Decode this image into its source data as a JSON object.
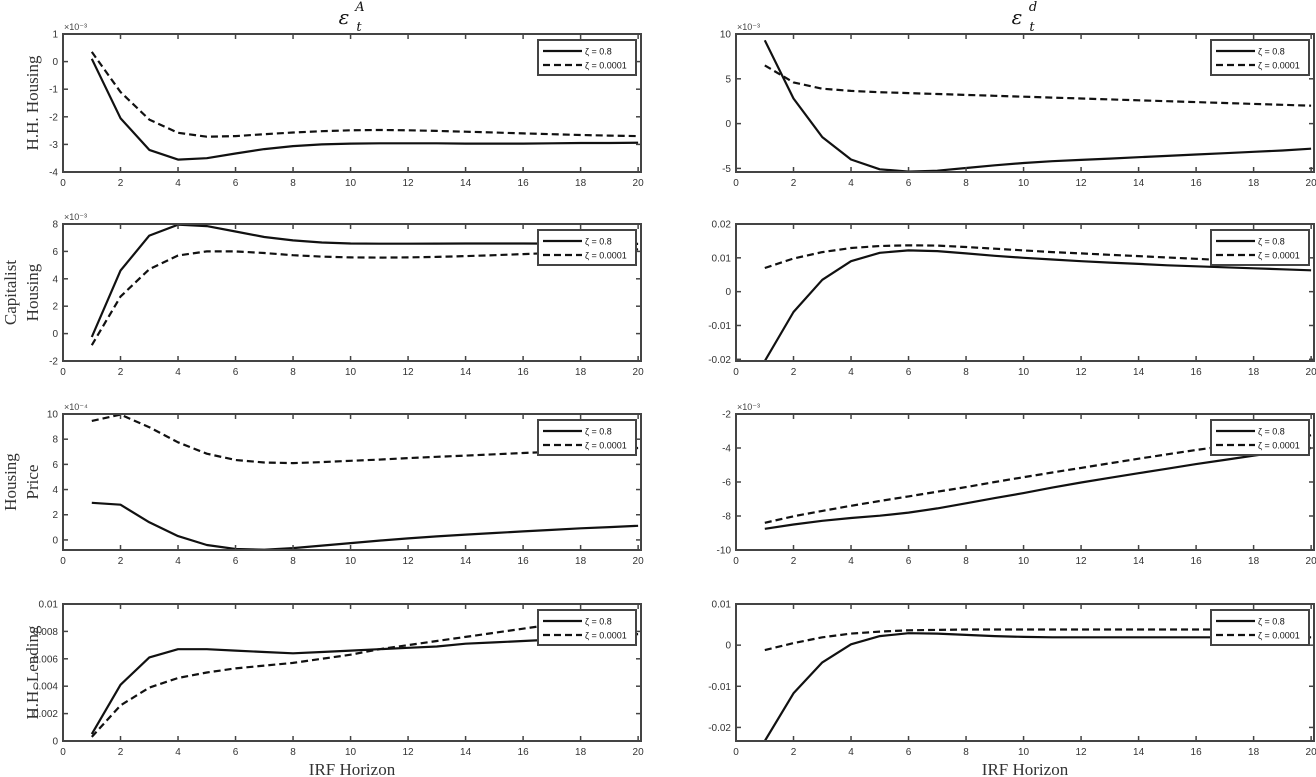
{
  "figure": {
    "column_titles": [
      {
        "base": "ε",
        "sub": "t",
        "sup": "A"
      },
      {
        "base": "ε",
        "sub": "t",
        "sup": "d"
      }
    ],
    "row_labels": [
      [
        "H.H. Housing"
      ],
      [
        "Capitalist",
        "Housing"
      ],
      [
        "Housing",
        "Price"
      ],
      [
        "H.H. Lending"
      ]
    ],
    "xlabel": "IRF Horizon",
    "legend": [
      {
        "label": "ζ = 0.8",
        "style": "solid"
      },
      {
        "label": "ζ = 0.0001",
        "style": "dashed"
      }
    ],
    "colors": {
      "line": "#111111",
      "axis": "#444444",
      "background": "#ffffff"
    }
  },
  "chart_data": [
    {
      "type": "line",
      "title": "ε_t^A",
      "ylabel": "H.H. Housing",
      "xlabel": "",
      "row": 0,
      "col": 0,
      "exponent": "×10⁻³",
      "x": [
        1,
        2,
        3,
        4,
        5,
        6,
        7,
        8,
        9,
        10,
        11,
        12,
        13,
        14,
        15,
        16,
        17,
        18,
        19,
        20
      ],
      "xlim": [
        0,
        20
      ],
      "xticks": [
        0,
        2,
        4,
        6,
        8,
        10,
        12,
        14,
        16,
        18,
        20
      ],
      "ylim": [
        -4,
        1
      ],
      "yticks": [
        -4,
        -3,
        -2,
        -1,
        0,
        1
      ],
      "yticklabels": [
        "-4",
        "-3",
        "-2",
        "-1",
        "0",
        "1"
      ],
      "series": [
        {
          "name": "ζ = 0.8",
          "style": "solid",
          "values": [
            0.1,
            -2.05,
            -3.2,
            -3.55,
            -3.5,
            -3.33,
            -3.17,
            -3.06,
            -3.0,
            -2.97,
            -2.96,
            -2.96,
            -2.96,
            -2.97,
            -2.97,
            -2.97,
            -2.96,
            -2.95,
            -2.95,
            -2.94
          ]
        },
        {
          "name": "ζ = 0.0001",
          "style": "dashed",
          "values": [
            0.35,
            -1.1,
            -2.1,
            -2.58,
            -2.72,
            -2.7,
            -2.63,
            -2.57,
            -2.52,
            -2.49,
            -2.48,
            -2.49,
            -2.51,
            -2.54,
            -2.57,
            -2.6,
            -2.63,
            -2.66,
            -2.68,
            -2.7
          ]
        }
      ],
      "legend_position": "upper right",
      "grid": false
    },
    {
      "type": "line",
      "title": "ε_t^d",
      "ylabel": "",
      "xlabel": "",
      "row": 0,
      "col": 1,
      "exponent": "×10⁻³",
      "x": [
        1,
        2,
        3,
        4,
        5,
        6,
        7,
        8,
        9,
        10,
        11,
        12,
        13,
        14,
        15,
        16,
        17,
        18,
        19,
        20
      ],
      "xlim": [
        0,
        20
      ],
      "xticks": [
        0,
        2,
        4,
        6,
        8,
        10,
        12,
        14,
        16,
        18,
        20
      ],
      "ylim": [
        -5.4,
        10
      ],
      "yticks": [
        -5,
        0,
        5,
        10
      ],
      "yticklabels": [
        "-5",
        "0",
        "5",
        "10"
      ],
      "series": [
        {
          "name": "ζ = 0.8",
          "style": "solid",
          "values": [
            9.3,
            2.8,
            -1.5,
            -4.0,
            -5.1,
            -5.35,
            -5.25,
            -4.95,
            -4.65,
            -4.4,
            -4.2,
            -4.05,
            -3.9,
            -3.75,
            -3.6,
            -3.45,
            -3.3,
            -3.15,
            -3.0,
            -2.8
          ]
        },
        {
          "name": "ζ = 0.0001",
          "style": "dashed",
          "values": [
            6.5,
            4.6,
            3.9,
            3.65,
            3.5,
            3.4,
            3.3,
            3.2,
            3.1,
            3.0,
            2.9,
            2.8,
            2.7,
            2.6,
            2.5,
            2.4,
            2.3,
            2.2,
            2.1,
            2.0
          ]
        }
      ],
      "legend_position": "upper right",
      "grid": false
    },
    {
      "type": "line",
      "title": "",
      "ylabel": "Capitalist Housing",
      "xlabel": "",
      "row": 1,
      "col": 0,
      "exponent": "×10⁻³",
      "x": [
        1,
        2,
        3,
        4,
        5,
        6,
        7,
        8,
        9,
        10,
        11,
        12,
        13,
        14,
        15,
        16,
        17,
        18,
        19,
        20
      ],
      "xlim": [
        0,
        20
      ],
      "xticks": [
        0,
        2,
        4,
        6,
        8,
        10,
        12,
        14,
        16,
        18,
        20
      ],
      "ylim": [
        -2,
        8
      ],
      "yticks": [
        -2,
        0,
        2,
        4,
        6,
        8
      ],
      "yticklabels": [
        "-2",
        "0",
        "2",
        "4",
        "6",
        "8"
      ],
      "series": [
        {
          "name": "ζ = 0.8",
          "style": "solid",
          "values": [
            -0.25,
            4.6,
            7.15,
            7.95,
            7.85,
            7.45,
            7.05,
            6.8,
            6.65,
            6.58,
            6.56,
            6.56,
            6.57,
            6.58,
            6.58,
            6.58,
            6.57,
            6.56,
            6.55,
            6.55
          ]
        },
        {
          "name": "ζ = 0.0001",
          "style": "dashed",
          "values": [
            -0.85,
            2.7,
            4.7,
            5.7,
            6.0,
            6.0,
            5.88,
            5.72,
            5.62,
            5.56,
            5.55,
            5.56,
            5.6,
            5.66,
            5.72,
            5.8,
            5.88,
            5.95,
            6.05,
            6.15
          ]
        }
      ],
      "legend_position": "upper right",
      "grid": false
    },
    {
      "type": "line",
      "title": "",
      "ylabel": "",
      "xlabel": "",
      "row": 1,
      "col": 1,
      "exponent": "",
      "x": [
        1,
        2,
        3,
        4,
        5,
        6,
        7,
        8,
        9,
        10,
        11,
        12,
        13,
        14,
        15,
        16,
        17,
        18,
        19,
        20
      ],
      "xlim": [
        0,
        20
      ],
      "xticks": [
        0,
        2,
        4,
        6,
        8,
        10,
        12,
        14,
        16,
        18,
        20
      ],
      "ylim": [
        -0.0205,
        0.02
      ],
      "yticks": [
        -0.02,
        -0.01,
        0,
        0.01,
        0.02
      ],
      "yticklabels": [
        "-0.02",
        "-0.01",
        "0",
        "0.01",
        "0.02"
      ],
      "series": [
        {
          "name": "ζ = 0.8",
          "style": "solid",
          "values": [
            -0.0205,
            -0.006,
            0.0035,
            0.009,
            0.0115,
            0.0122,
            0.012,
            0.0113,
            0.0106,
            0.01,
            0.0095,
            0.009,
            0.0086,
            0.0082,
            0.0078,
            0.0075,
            0.0072,
            0.0069,
            0.0066,
            0.0063
          ]
        },
        {
          "name": "ζ = 0.0001",
          "style": "dashed",
          "values": [
            0.007,
            0.0098,
            0.0117,
            0.0129,
            0.0135,
            0.0137,
            0.0136,
            0.0132,
            0.0127,
            0.0122,
            0.0117,
            0.0113,
            0.0109,
            0.0105,
            0.0101,
            0.0097,
            0.0093,
            0.0089,
            0.0086,
            0.0083
          ]
        }
      ],
      "legend_position": "upper right",
      "grid": false
    },
    {
      "type": "line",
      "title": "",
      "ylabel": "Housing Price",
      "xlabel": "",
      "row": 2,
      "col": 0,
      "exponent": "×10⁻⁴",
      "x": [
        1,
        2,
        3,
        4,
        5,
        6,
        7,
        8,
        9,
        10,
        11,
        12,
        13,
        14,
        15,
        16,
        17,
        18,
        19,
        20
      ],
      "xlim": [
        0,
        20
      ],
      "xticks": [
        0,
        2,
        4,
        6,
        8,
        10,
        12,
        14,
        16,
        18,
        20
      ],
      "ylim": [
        -0.8,
        10
      ],
      "yticks": [
        0,
        2,
        4,
        6,
        8,
        10
      ],
      "yticklabels": [
        "0",
        "2",
        "4",
        "6",
        "8",
        "10"
      ],
      "series": [
        {
          "name": "ζ = 0.8",
          "style": "solid",
          "values": [
            2.95,
            2.8,
            1.4,
            0.3,
            -0.4,
            -0.72,
            -0.78,
            -0.65,
            -0.45,
            -0.25,
            -0.05,
            0.12,
            0.28,
            0.42,
            0.55,
            0.68,
            0.8,
            0.92,
            1.02,
            1.12
          ]
        },
        {
          "name": "ζ = 0.0001",
          "style": "dashed",
          "values": [
            9.45,
            9.95,
            8.95,
            7.75,
            6.85,
            6.35,
            6.15,
            6.1,
            6.18,
            6.28,
            6.38,
            6.5,
            6.6,
            6.7,
            6.8,
            6.9,
            7.0,
            7.1,
            7.2,
            7.3
          ]
        }
      ],
      "legend_position": "upper right",
      "grid": false
    },
    {
      "type": "line",
      "title": "",
      "ylabel": "",
      "xlabel": "",
      "row": 2,
      "col": 1,
      "exponent": "×10⁻³",
      "x": [
        1,
        2,
        3,
        4,
        5,
        6,
        7,
        8,
        9,
        10,
        11,
        12,
        13,
        14,
        15,
        16,
        17,
        18,
        19,
        20
      ],
      "xlim": [
        0,
        20
      ],
      "xticks": [
        0,
        2,
        4,
        6,
        8,
        10,
        12,
        14,
        16,
        18,
        20
      ],
      "ylim": [
        -10,
        -2
      ],
      "yticks": [
        -10,
        -8,
        -6,
        -4,
        -2
      ],
      "yticklabels": [
        "-10",
        "-8",
        "-6",
        "-4",
        "-2"
      ],
      "series": [
        {
          "name": "ζ = 0.8",
          "style": "solid",
          "values": [
            -8.75,
            -8.5,
            -8.28,
            -8.12,
            -7.98,
            -7.8,
            -7.55,
            -7.25,
            -6.95,
            -6.65,
            -6.33,
            -6.03,
            -5.75,
            -5.48,
            -5.22,
            -4.95,
            -4.7,
            -4.45,
            -4.22,
            -4.0
          ]
        },
        {
          "name": "ζ = 0.0001",
          "style": "dashed",
          "values": [
            -8.4,
            -8.02,
            -7.7,
            -7.4,
            -7.12,
            -6.85,
            -6.57,
            -6.3,
            -6.0,
            -5.72,
            -5.44,
            -5.17,
            -4.9,
            -4.63,
            -4.37,
            -4.12,
            -3.88,
            -3.65,
            -3.45,
            -3.25
          ]
        }
      ],
      "legend_position": "upper right",
      "grid": false
    },
    {
      "type": "line",
      "title": "",
      "ylabel": "H.H. Lending",
      "xlabel": "IRF Horizon",
      "row": 3,
      "col": 0,
      "exponent": "",
      "x": [
        1,
        2,
        3,
        4,
        5,
        6,
        7,
        8,
        9,
        10,
        11,
        12,
        13,
        14,
        15,
        16,
        17,
        18,
        19,
        20
      ],
      "xlim": [
        0,
        20
      ],
      "xticks": [
        0,
        2,
        4,
        6,
        8,
        10,
        12,
        14,
        16,
        18,
        20
      ],
      "ylim": [
        0,
        0.01
      ],
      "yticks": [
        0,
        0.002,
        0.004,
        0.006,
        0.008,
        0.01
      ],
      "yticklabels": [
        "0",
        "0.002",
        "0.004",
        "0.006",
        "0.008",
        "0.01"
      ],
      "series": [
        {
          "name": "ζ = 0.8",
          "style": "solid",
          "values": [
            0.0005,
            0.0041,
            0.0061,
            0.0067,
            0.0067,
            0.0066,
            0.0065,
            0.0064,
            0.0065,
            0.0066,
            0.0067,
            0.0068,
            0.0069,
            0.0071,
            0.0072,
            0.0073,
            0.0074,
            0.0076,
            0.0077,
            0.0078
          ]
        },
        {
          "name": "ζ = 0.0001",
          "style": "dashed",
          "values": [
            0.0003,
            0.0026,
            0.0039,
            0.0046,
            0.005,
            0.0053,
            0.0055,
            0.0057,
            0.006,
            0.0063,
            0.0067,
            0.007,
            0.0073,
            0.0076,
            0.0079,
            0.0082,
            0.0085,
            0.0087,
            0.0089,
            0.0091
          ]
        }
      ],
      "legend_position": "upper right",
      "grid": false
    },
    {
      "type": "line",
      "title": "",
      "ylabel": "",
      "xlabel": "IRF Horizon",
      "row": 3,
      "col": 1,
      "exponent": "",
      "x": [
        1,
        2,
        3,
        4,
        5,
        6,
        7,
        8,
        9,
        10,
        11,
        12,
        13,
        14,
        15,
        16,
        17,
        18,
        19,
        20
      ],
      "xlim": [
        0,
        20
      ],
      "xticks": [
        0,
        2,
        4,
        6,
        8,
        10,
        12,
        14,
        16,
        18,
        20
      ],
      "ylim": [
        -0.0233,
        0.01
      ],
      "yticks": [
        -0.02,
        -0.01,
        0,
        0.01
      ],
      "yticklabels": [
        "-0.02",
        "-0.01",
        "0",
        "0.01"
      ],
      "series": [
        {
          "name": "ζ = 0.8",
          "style": "solid",
          "values": [
            -0.0233,
            -0.0117,
            -0.0042,
            0.0002,
            0.0022,
            0.0029,
            0.0028,
            0.0025,
            0.0022,
            0.002,
            0.0019,
            0.0019,
            0.0019,
            0.0019,
            0.0019,
            0.0019,
            0.0019,
            0.0019,
            0.0019,
            0.0019
          ]
        },
        {
          "name": "ζ = 0.0001",
          "style": "dashed",
          "values": [
            -0.0012,
            0.0005,
            0.0019,
            0.0028,
            0.0033,
            0.0036,
            0.0037,
            0.0038,
            0.0038,
            0.0038,
            0.0038,
            0.0038,
            0.0038,
            0.0038,
            0.0038,
            0.0038,
            0.0038,
            0.0038,
            0.0038,
            0.0038
          ]
        }
      ],
      "legend_position": "upper right",
      "grid": false
    }
  ]
}
